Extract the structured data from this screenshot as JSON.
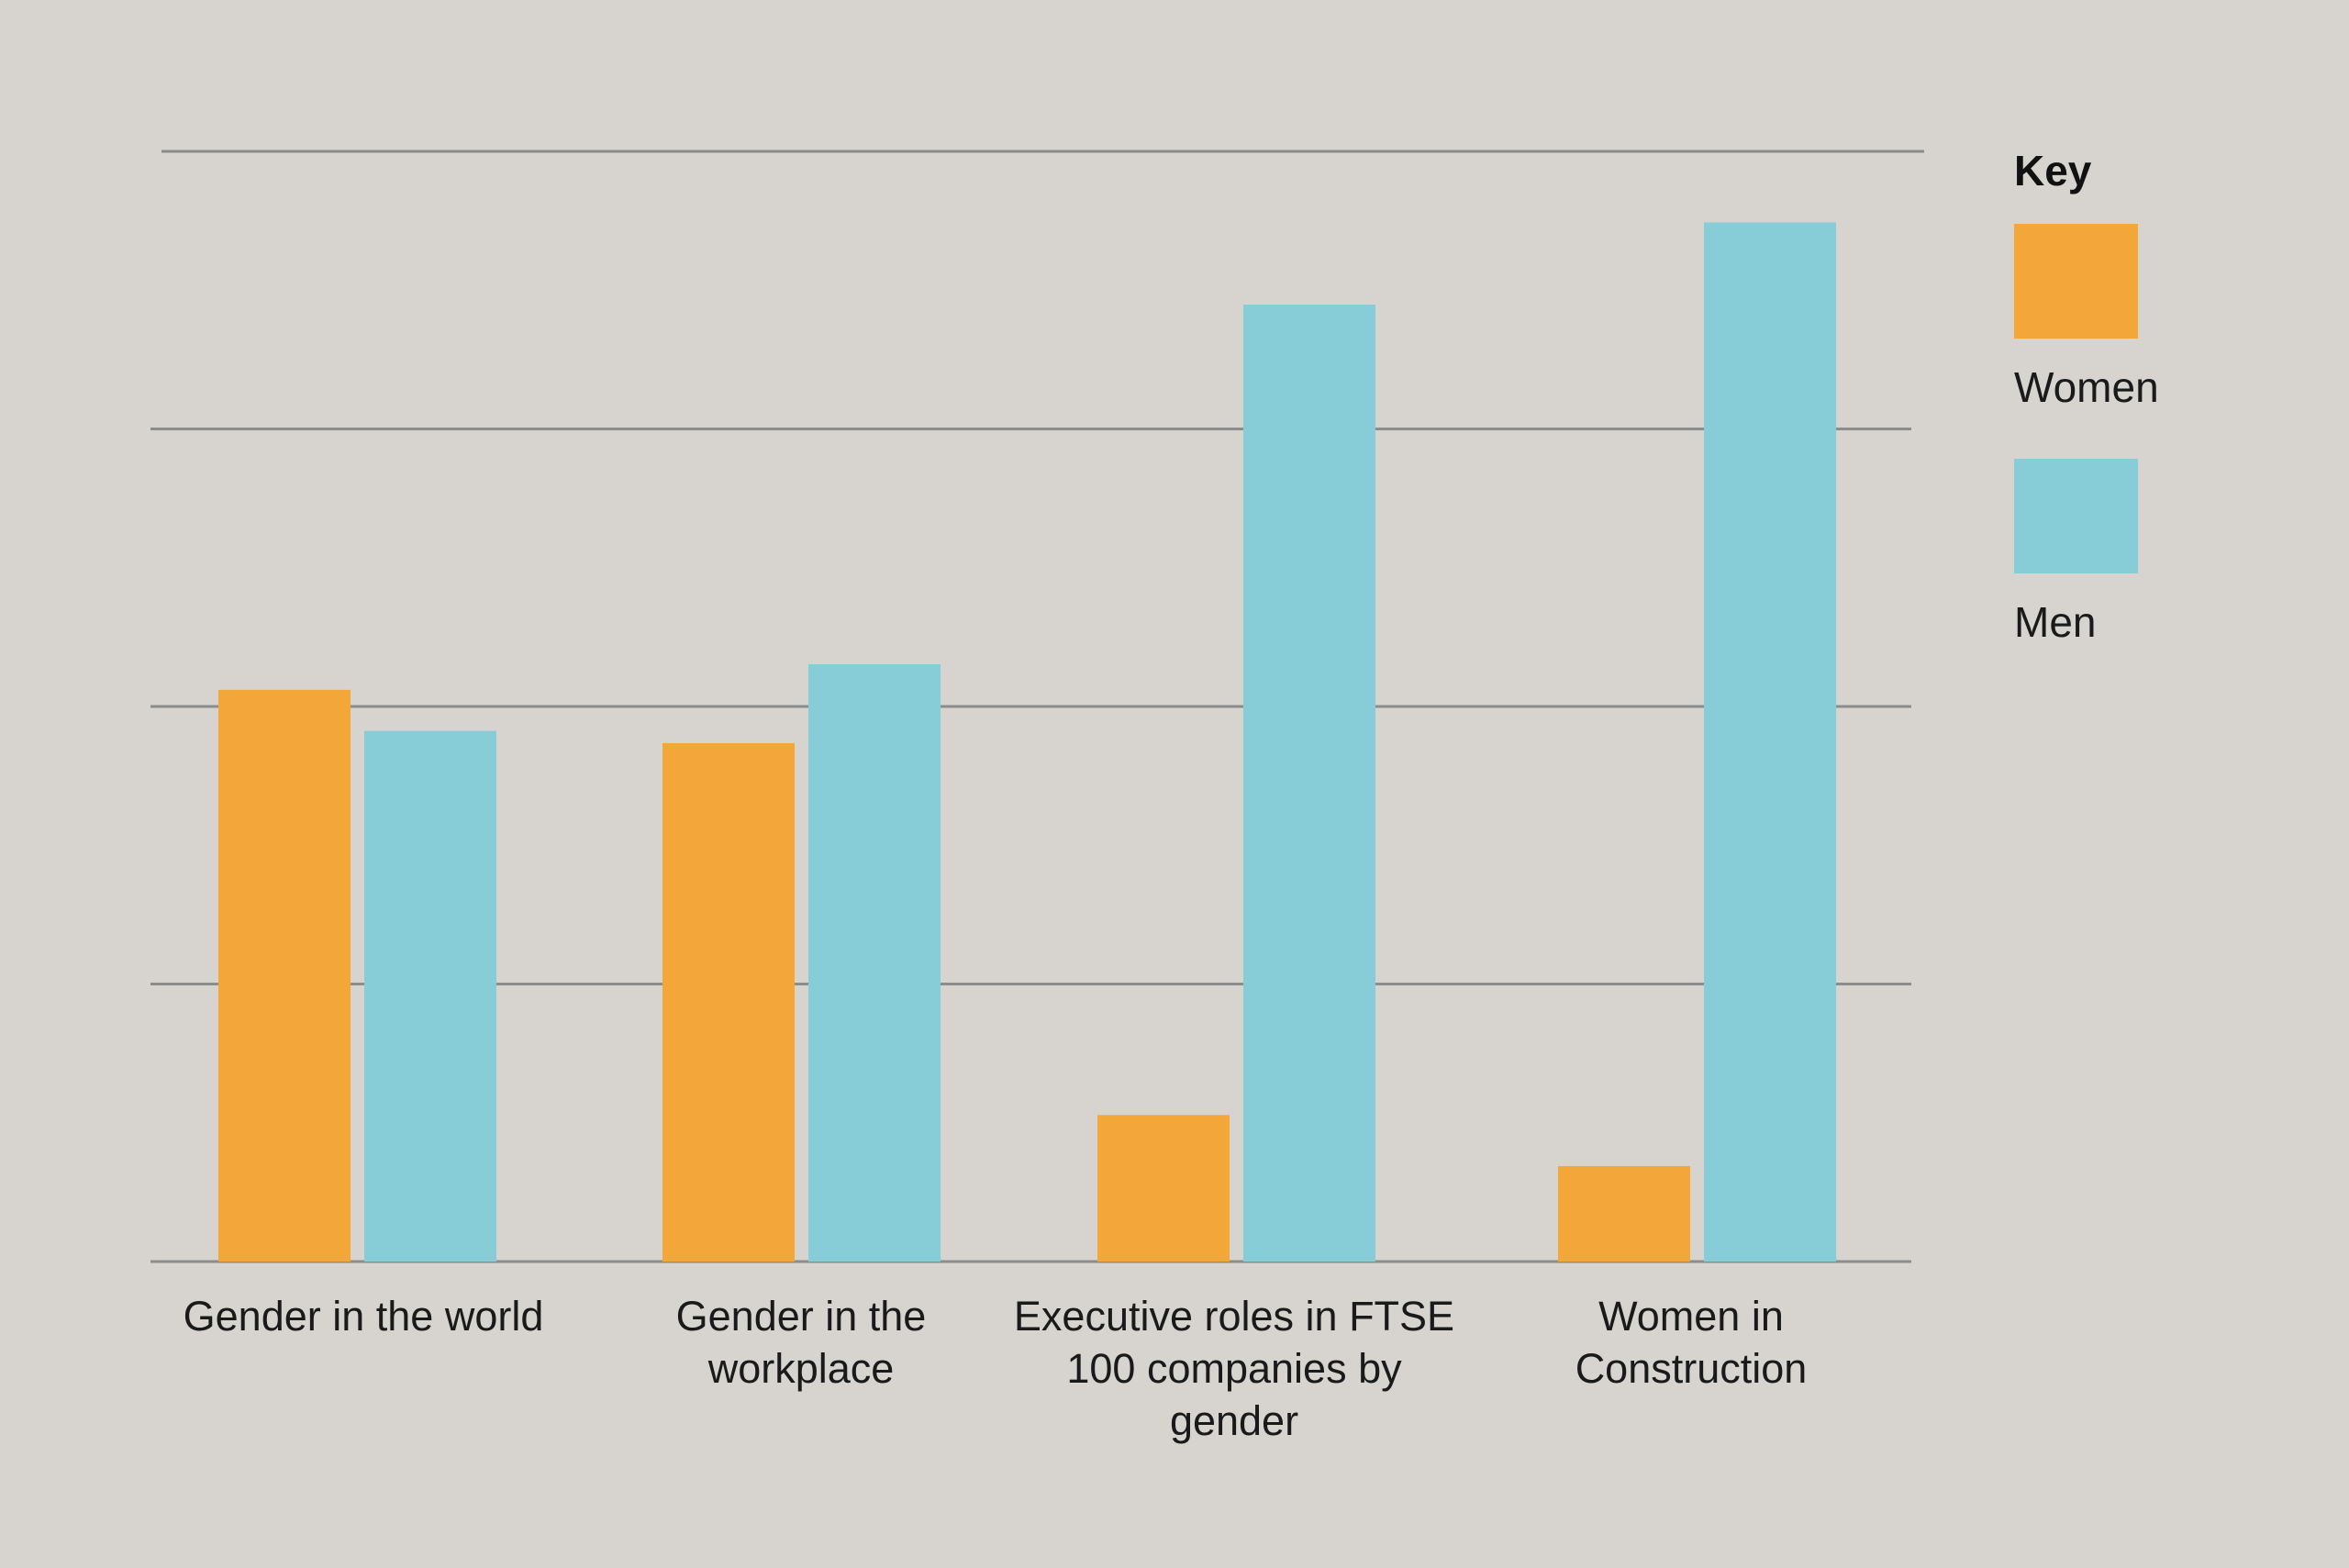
{
  "chart_data": {
    "type": "bar",
    "title": "",
    "xlabel": "",
    "ylabel": "",
    "ylim": [
      0,
      100
    ],
    "grid": true,
    "legend_position": "right",
    "legend_title": "Key",
    "categories": [
      "Gender in the world",
      "Gender in the workplace",
      "Executive roles in FTSE 100 companies by gender",
      "Women in Construction"
    ],
    "category_lines": [
      [
        "Gender in the world"
      ],
      [
        "Gender in the",
        "workplace"
      ],
      [
        "Executive roles in FTSE",
        "100 companies by",
        "gender"
      ],
      [
        "Women in",
        "Construction"
      ]
    ],
    "series": [
      {
        "name": "Women",
        "color": "#f4a739",
        "values": [
          51.5,
          46.7,
          13.2,
          8.6
        ]
      },
      {
        "name": "Men",
        "color": "#86cdd8",
        "values": [
          47.8,
          53.8,
          86.2,
          93.6
        ]
      }
    ]
  }
}
